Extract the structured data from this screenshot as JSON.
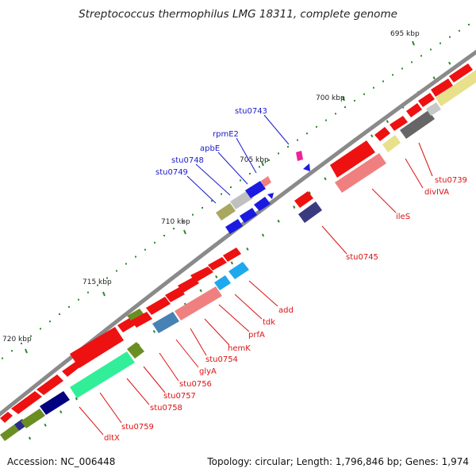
{
  "title": "Streptococcus thermophilus LMG 18311, complete genome",
  "accession": "Accession: NC_006448",
  "summary": "Topology: circular; Length: 1,796,846 bp; Genes: 1,974",
  "ticks": [
    {
      "label": "695 kbp"
    },
    {
      "label": "700 kbp"
    },
    {
      "label": "705 kbp"
    },
    {
      "label": "710 kbp"
    },
    {
      "label": "715 kbp"
    },
    {
      "label": "720 kbp"
    }
  ],
  "colors": {
    "backbone": "#8a8a8a",
    "tick": "#2a8a2a",
    "forward_label": "#1a1acc",
    "reverse_label": "#dd1111",
    "leader_forward": "#1a1acc",
    "leader_reverse": "#dd1111"
  },
  "forward_genes": [
    {
      "name": "stu0743"
    },
    {
      "name": "rpmE2"
    },
    {
      "name": "apbE"
    },
    {
      "name": "stu0748"
    },
    {
      "name": "stu0749"
    }
  ],
  "reverse_genes": [
    {
      "name": "stu0739"
    },
    {
      "name": "divIVA"
    },
    {
      "name": "ileS"
    },
    {
      "name": "stu0745"
    },
    {
      "name": "add"
    },
    {
      "name": "tdk"
    },
    {
      "name": "prfA"
    },
    {
      "name": "hemK"
    },
    {
      "name": "stu0754"
    },
    {
      "name": "glyA"
    },
    {
      "name": "stu0756"
    },
    {
      "name": "stu0757"
    },
    {
      "name": "stu0758"
    },
    {
      "name": "stu0759"
    },
    {
      "name": "dltX"
    }
  ]
}
